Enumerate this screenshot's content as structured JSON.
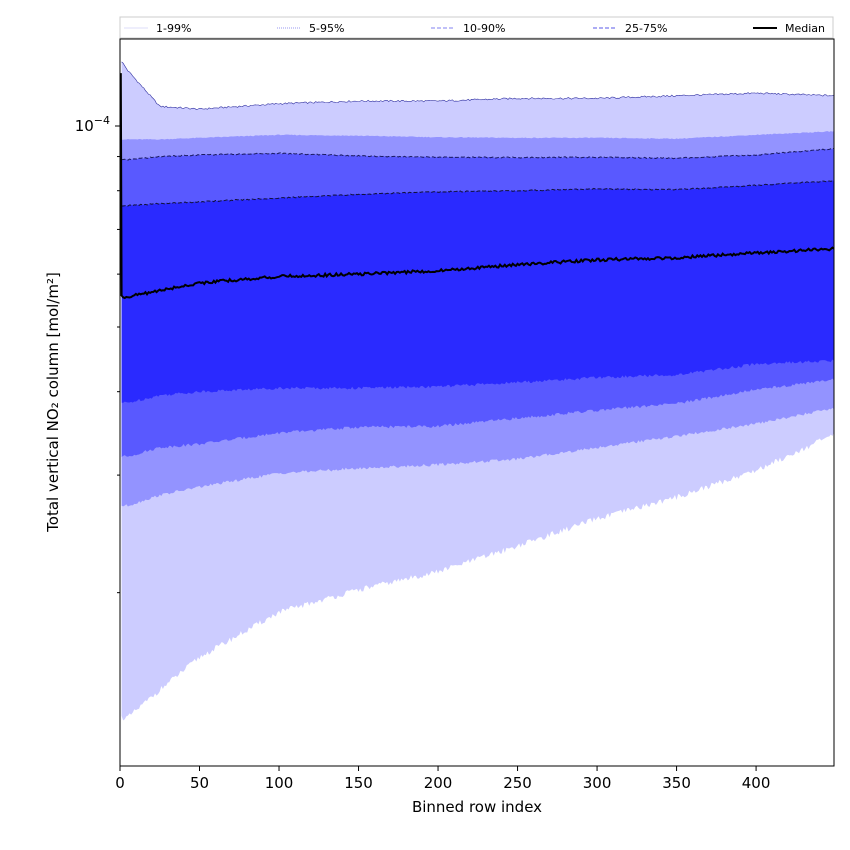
{
  "chart_data": {
    "type": "area",
    "xlabel": "Binned row index",
    "ylabel": "Total vertical NO₂ column [mol/m²]",
    "xlim": [
      0,
      449
    ],
    "ylim": [
      1.1e-05,
      0.000135
    ],
    "yscale": "log",
    "x_ticks": [
      0,
      50,
      100,
      150,
      200,
      250,
      300,
      350,
      400
    ],
    "y_tick_labels": [
      {
        "value": 0.0001,
        "base": "10",
        "exp": "−4"
      }
    ],
    "legend_position": "top, above plot",
    "legend": [
      {
        "label": "1-99%",
        "style": "thin-solid",
        "color": "#d0d0f8"
      },
      {
        "label": "5-95%",
        "style": "thin-dotted",
        "color": "#9a9af0"
      },
      {
        "label": "10-90%",
        "style": "dashed",
        "color": "#8080f0"
      },
      {
        "label": "25-75%",
        "style": "dashed",
        "color": "#5a5ae8"
      },
      {
        "label": "Median",
        "style": "solid",
        "color": "#000000"
      }
    ],
    "bands": [
      {
        "name": "1-99%",
        "color": "#ccccff"
      },
      {
        "name": "5-95%",
        "color": "#9393ff"
      },
      {
        "name": "10-90%",
        "color": "#5959ff"
      },
      {
        "name": "25-75%",
        "color": "#2a2aff"
      }
    ],
    "x": [
      1,
      5,
      25,
      50,
      100,
      150,
      200,
      250,
      300,
      350,
      400,
      449
    ],
    "series": [
      {
        "name": "1-99%",
        "lower": [
          1.3e-05,
          1.3e-05,
          1.43e-05,
          1.6e-05,
          1.87e-05,
          2.02e-05,
          2.15e-05,
          2.35e-05,
          2.58e-05,
          2.78e-05,
          3.05e-05,
          3.45e-05
        ],
        "upper": [
          0.000125,
          0.000121,
          0.000107,
          0.000106,
          0.000108,
          0.000109,
          0.000109,
          0.00011,
          0.00011,
          0.000111,
          0.000112,
          0.000111
        ]
      },
      {
        "name": "5-95%",
        "lower": [
          2.7e-05,
          2.7e-05,
          2.8e-05,
          2.88e-05,
          3.02e-05,
          3.07e-05,
          3.11e-05,
          3.17e-05,
          3.3e-05,
          3.43e-05,
          3.58e-05,
          3.78e-05
        ],
        "upper": [
          9.55e-05,
          9.55e-05,
          9.55e-05,
          9.6e-05,
          9.7e-05,
          9.67e-05,
          9.62e-05,
          9.6e-05,
          9.6e-05,
          9.57e-05,
          9.7e-05,
          9.82e-05
        ]
      },
      {
        "name": "10-90%",
        "lower": [
          3.2e-05,
          3.2e-05,
          3.3e-05,
          3.34e-05,
          3.47e-05,
          3.54e-05,
          3.55e-05,
          3.65e-05,
          3.75e-05,
          3.84e-05,
          4.03e-05,
          4.17e-05
        ],
        "upper": [
          8.9e-05,
          8.9e-05,
          9e-05,
          9.05e-05,
          9.1e-05,
          9.02e-05,
          8.98e-05,
          8.97e-05,
          8.98e-05,
          8.95e-05,
          9.05e-05,
          9.25e-05
        ],
        "line_color": "#1a1a60"
      },
      {
        "name": "25-75%",
        "lower": [
          3.85e-05,
          3.85e-05,
          3.95e-05,
          4e-05,
          4.05e-05,
          4.05e-05,
          4.07e-05,
          4.13e-05,
          4.2e-05,
          4.24e-05,
          4.4e-05,
          4.45e-05
        ],
        "upper": [
          7.6e-05,
          7.6e-05,
          7.65e-05,
          7.7e-05,
          7.8e-05,
          7.9e-05,
          7.97e-05,
          8e-05,
          8.05e-05,
          8.03e-05,
          8.15e-05,
          8.28e-05
        ],
        "line_color": "#10103a"
      },
      {
        "name": "Median",
        "values": [
          5.55e-05,
          5.55e-05,
          5.67e-05,
          5.82e-05,
          5.95e-05,
          6e-05,
          6.07e-05,
          6.2e-05,
          6.3e-05,
          6.35e-05,
          6.45e-05,
          6.55e-05
        ],
        "line_color": "#000000"
      }
    ],
    "ymax_start_spike": 0.00012
  }
}
